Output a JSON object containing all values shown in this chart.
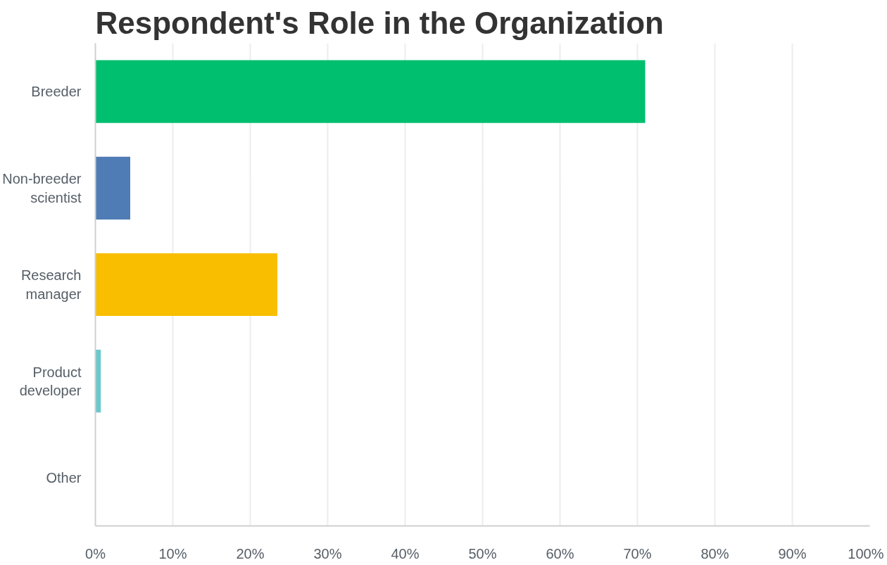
{
  "chart_data": {
    "type": "bar",
    "orientation": "horizontal",
    "title": "Respondent's Role in the Organization",
    "categories": [
      "Breeder",
      "Non-breeder\nscientist",
      "Research\nmanager",
      "Product\ndeveloper",
      "Other"
    ],
    "values": [
      71,
      4.5,
      23.5,
      0.7,
      0
    ],
    "colors": [
      "#00bf6f",
      "#507cb6",
      "#f9be00",
      "#6bc8cd",
      "#a0a0a0"
    ],
    "xlim": [
      0,
      100
    ],
    "xticks": [
      {
        "value": 0,
        "label": "0%"
      },
      {
        "value": 10,
        "label": "10%"
      },
      {
        "value": 20,
        "label": "20%"
      },
      {
        "value": 30,
        "label": "30%"
      },
      {
        "value": 40,
        "label": "40%"
      },
      {
        "value": 50,
        "label": "50%"
      },
      {
        "value": 60,
        "label": "60%"
      },
      {
        "value": 70,
        "label": "70%"
      },
      {
        "value": 80,
        "label": "80%"
      },
      {
        "value": 90,
        "label": "90%"
      },
      {
        "value": 100,
        "label": "100%"
      }
    ],
    "grid": "x"
  }
}
